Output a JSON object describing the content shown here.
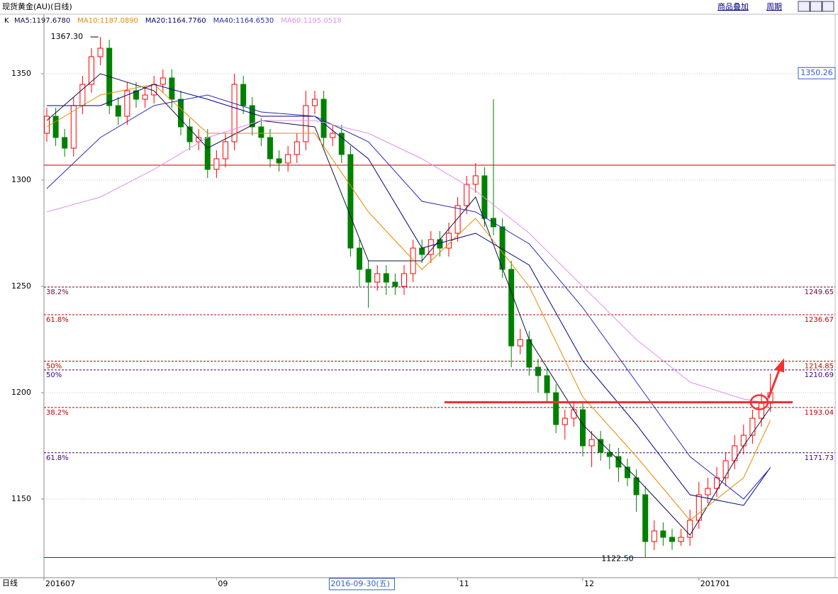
{
  "chart_data": {
    "type": "candlestick",
    "title": "现货黄金(AU)(日线)",
    "toolbar": [
      "商品叠加",
      "周期"
    ],
    "indicator": "K",
    "period_label": "日线",
    "categories": [
      "201607",
      null,
      null,
      null,
      null,
      null,
      null,
      null,
      null,
      null,
      null,
      null,
      null,
      null,
      null,
      null,
      null,
      null,
      null,
      "09",
      null,
      null,
      null,
      null,
      null,
      null,
      null,
      null,
      null,
      null,
      null,
      null,
      null,
      null,
      "2016-09-30(五)",
      null,
      null,
      null,
      null,
      null,
      null,
      null,
      null,
      null,
      null,
      null,
      "11",
      null,
      null,
      null,
      null,
      null,
      null,
      null,
      null,
      null,
      null,
      null,
      null,
      null,
      "12",
      null,
      null,
      null,
      null,
      null,
      null,
      null,
      null,
      null,
      null,
      null,
      null,
      "201701",
      null,
      null,
      null,
      null,
      null,
      null,
      null,
      null
    ],
    "highlight_category": 34,
    "open": [
      1322,
      1330,
      1320,
      1315,
      1335,
      1345,
      1358,
      1362,
      1335,
      1330,
      1342,
      1338,
      1340,
      1345,
      1348,
      1338,
      1325,
      1318,
      1320,
      1305,
      1310,
      1318,
      1345,
      1335,
      1325,
      1320,
      1310,
      1308,
      1312,
      1318,
      1335,
      1338,
      1320,
      1322,
      1312,
      1268,
      1258,
      1252,
      1256,
      1252,
      1250,
      1256,
      1268,
      1265,
      1272,
      1268,
      1275,
      1288,
      1298,
      1302,
      1282,
      1278,
      1258,
      1222,
      1225,
      1212,
      1208,
      1200,
      1185,
      1188,
      1192,
      1175,
      1178,
      1172,
      1170,
      1165,
      1160,
      1152,
      1130,
      1135,
      1132,
      1130,
      1132,
      1140,
      1152,
      1155,
      1160,
      1168,
      1175,
      1180,
      1188,
      1195
    ],
    "high": [
      1334,
      1334,
      1324,
      1339,
      1349,
      1362,
      1367.3,
      1366,
      1339,
      1346,
      1346,
      1344,
      1349,
      1352,
      1352,
      1342,
      1329,
      1324,
      1324,
      1314,
      1322,
      1350,
      1349,
      1339,
      1329,
      1324,
      1314,
      1316,
      1322,
      1342,
      1342,
      1342,
      1326,
      1326,
      1316,
      1272,
      1262,
      1260,
      1260,
      1256,
      1260,
      1272,
      1272,
      1276,
      1276,
      1280,
      1292,
      1302,
      1308,
      1306,
      1338,
      1282,
      1262,
      1230,
      1229,
      1216,
      1212,
      1204,
      1192,
      1196,
      1196,
      1182,
      1182,
      1176,
      1174,
      1169,
      1164,
      1156,
      1140,
      1139,
      1136,
      1136,
      1145,
      1158,
      1160,
      1165,
      1172,
      1180,
      1185,
      1192,
      1200,
      1209
    ],
    "low": [
      1318,
      1316,
      1311,
      1311,
      1331,
      1341,
      1354,
      1331,
      1326,
      1326,
      1334,
      1334,
      1336,
      1341,
      1334,
      1321,
      1314,
      1314,
      1301,
      1301,
      1306,
      1314,
      1331,
      1321,
      1316,
      1306,
      1304,
      1304,
      1308,
      1314,
      1331,
      1316,
      1316,
      1308,
      1264,
      1250,
      1240,
      1248,
      1246,
      1246,
      1246,
      1252,
      1261,
      1261,
      1264,
      1264,
      1271,
      1284,
      1294,
      1278,
      1274,
      1254,
      1212,
      1218,
      1208,
      1200,
      1196,
      1181,
      1178,
      1184,
      1170,
      1165,
      1168,
      1164,
      1158,
      1156,
      1144,
      1122.5,
      1126,
      1128,
      1126,
      1128,
      1128,
      1136,
      1148,
      1151,
      1156,
      1164,
      1171,
      1176,
      1184,
      1191
    ],
    "close": [
      1330,
      1320,
      1315,
      1335,
      1345,
      1358,
      1362,
      1335,
      1330,
      1342,
      1338,
      1340,
      1345,
      1348,
      1338,
      1325,
      1318,
      1320,
      1305,
      1310,
      1318,
      1345,
      1335,
      1325,
      1320,
      1310,
      1308,
      1312,
      1318,
      1335,
      1338,
      1320,
      1322,
      1312,
      1268,
      1258,
      1252,
      1256,
      1252,
      1250,
      1256,
      1268,
      1265,
      1272,
      1268,
      1275,
      1288,
      1298,
      1302,
      1282,
      1278,
      1258,
      1222,
      1225,
      1212,
      1208,
      1200,
      1185,
      1188,
      1192,
      1175,
      1178,
      1172,
      1170,
      1165,
      1160,
      1152,
      1130,
      1135,
      1132,
      1130,
      1132,
      1140,
      1152,
      1155,
      1160,
      1168,
      1175,
      1180,
      1188,
      1195,
      1200
    ],
    "up_color": "#ff0000",
    "down_color": "#008000",
    "series": [
      {
        "name": "MA5:1197.6780",
        "color": "#101040",
        "x": [
          0,
          6,
          12,
          18,
          24,
          30,
          36,
          42,
          48,
          54,
          60,
          66,
          72,
          78,
          81
        ],
        "values": [
          1328,
          1350,
          1342,
          1315,
          1328,
          1325,
          1262,
          1262,
          1292,
          1225,
          1185,
          1160,
          1133,
          1175,
          1193
        ]
      },
      {
        "name": "MA10:1187.0890",
        "color": "#e88a00",
        "x": [
          0,
          6,
          12,
          18,
          24,
          30,
          36,
          42,
          48,
          54,
          60,
          66,
          72,
          78,
          81
        ],
        "values": [
          1325,
          1340,
          1345,
          1322,
          1322,
          1322,
          1285,
          1258,
          1282,
          1250,
          1198,
          1170,
          1140,
          1160,
          1187
        ]
      },
      {
        "name": "MA20:1164.7760",
        "color": "#000080",
        "x": [
          0,
          6,
          12,
          18,
          24,
          30,
          36,
          42,
          48,
          54,
          60,
          66,
          72,
          78,
          81
        ],
        "values": [
          1335,
          1335,
          1345,
          1338,
          1330,
          1330,
          1310,
          1268,
          1275,
          1260,
          1215,
          1185,
          1152,
          1147,
          1164.8
        ]
      },
      {
        "name": "MA40:1164.6530",
        "color": "#2a2ab0",
        "x": [
          0,
          6,
          12,
          18,
          24,
          30,
          36,
          42,
          48,
          54,
          60,
          66,
          72,
          78,
          81
        ],
        "values": [
          1296,
          1320,
          1335,
          1340,
          1332,
          1330,
          1318,
          1290,
          1285,
          1270,
          1240,
          1205,
          1170,
          1150,
          1164.7
        ]
      },
      {
        "name": "MA60:1195.0518",
        "color": "#e090e8",
        "x": [
          0,
          6,
          12,
          18,
          24,
          30,
          36,
          42,
          48,
          54,
          60,
          66,
          72,
          78,
          81
        ],
        "values": [
          1285,
          1292,
          1305,
          1320,
          1328,
          1328,
          1322,
          1310,
          1295,
          1275,
          1250,
          1225,
          1205,
          1197,
          1195
        ]
      }
    ],
    "ylim": [
      1113,
      1378
    ],
    "yticks": [
      1150,
      1200,
      1250,
      1300,
      1350
    ],
    "hlines": [
      {
        "value": 1307,
        "style": "solid",
        "color": "#c00000"
      },
      {
        "value": 1122.5,
        "style": "solid",
        "color": "#c00000"
      },
      {
        "value": 1249.65,
        "style": "dashed",
        "color": "#800040",
        "left": "38.2%",
        "right": "1249.65"
      },
      {
        "value": 1236.67,
        "style": "dashed",
        "color": "#c00000",
        "left": "61.8%",
        "right": "1236.67"
      },
      {
        "value": 1214.85,
        "style": "dashed",
        "color": "#c00000",
        "left": "50%",
        "right": "1214.85"
      },
      {
        "value": 1210.69,
        "style": "dashed",
        "color": "#400080",
        "left": "50%",
        "right": "1210.69"
      },
      {
        "value": 1193.04,
        "style": "dashed",
        "color": "#c00000",
        "left": "38.2%",
        "right": "1193.04"
      },
      {
        "value": 1171.73,
        "style": "dashed",
        "color": "#400080",
        "left": "61.8%",
        "right": "1171.73"
      }
    ],
    "max_label": "1367.30",
    "min_label": "1122.50",
    "cursor_price": {
      "value": 1350.26,
      "label": "1350.26"
    },
    "breakout_line": 1195.5
  }
}
